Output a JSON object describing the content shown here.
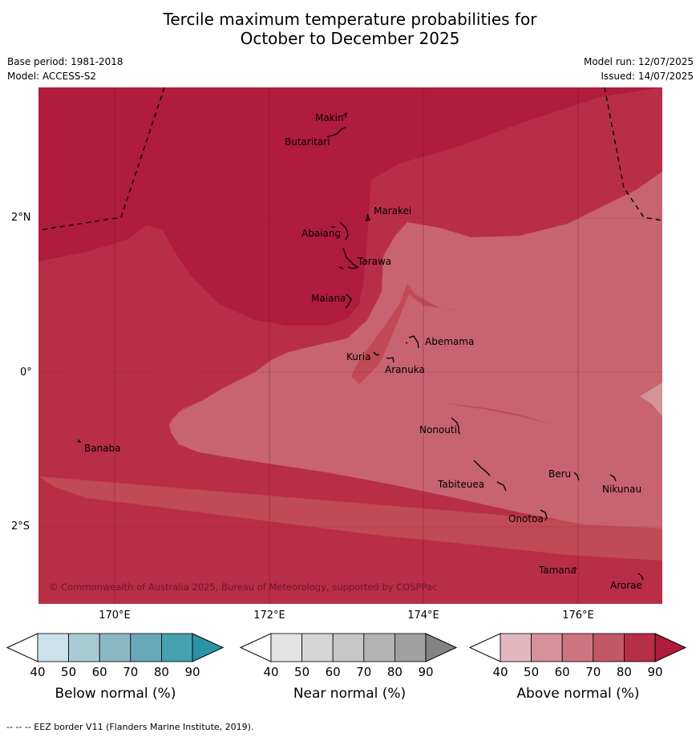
{
  "title_line1": "Tercile maximum temperature probabilities for",
  "title_line2": "October to December 2025",
  "base_period": "Base period: 1981-2018",
  "model": "Model: ACCESS-S2",
  "model_run": "Model run: 12/07/2025",
  "issued": "Issued: 14/07/2025",
  "copyright": "© Commonwealth of Australia 2025, Bureau of Meteorology, supported by COSPPac",
  "footer": "--  --  -- EEZ border V11 (Flanders Marine Institute, 2019).",
  "axes": {
    "lat_labels": [
      "2°N",
      "0°",
      "2°S"
    ],
    "lon_labels": [
      "170°E",
      "172°E",
      "174°E",
      "176°E"
    ]
  },
  "places": [
    {
      "name": "Makin"
    },
    {
      "name": "Butaritari"
    },
    {
      "name": "Marakei"
    },
    {
      "name": "Abaiang"
    },
    {
      "name": "Tarawa"
    },
    {
      "name": "Maiana"
    },
    {
      "name": "Abemama"
    },
    {
      "name": "Kuria"
    },
    {
      "name": "Aranuka"
    },
    {
      "name": "Banaba"
    },
    {
      "name": "Nonouti"
    },
    {
      "name": "Beru"
    },
    {
      "name": "Nikunau"
    },
    {
      "name": "Tabiteuea"
    },
    {
      "name": "Onotoa"
    },
    {
      "name": "Tamana"
    },
    {
      "name": "Arorae"
    }
  ],
  "colorbars": {
    "below": {
      "label": "Below normal (%)",
      "ticks": [
        "40",
        "50",
        "60",
        "70",
        "80",
        "90"
      ],
      "colors": [
        "#cbe2e9",
        "#a7cad3",
        "#8bb8c5",
        "#69a8b8",
        "#45a0b0",
        "#2a94a6"
      ]
    },
    "near": {
      "label": "Near normal (%)",
      "ticks": [
        "40",
        "50",
        "60",
        "70",
        "80",
        "90"
      ],
      "colors": [
        "#e3e3e3",
        "#d5d5d5",
        "#c7c7c7",
        "#b3b3b3",
        "#a0a0a0",
        "#838383"
      ]
    },
    "above": {
      "label": "Above normal (%)",
      "ticks": [
        "40",
        "50",
        "60",
        "70",
        "80",
        "90"
      ],
      "colors": [
        "#e2b8c0",
        "#d6919b",
        "#cc7581",
        "#c25865",
        "#b53047",
        "#b01c3b"
      ]
    }
  },
  "map_colors": {
    "above_90": "#b01c3b",
    "above_80": "#b92e47",
    "above_70": "#c04a55",
    "above_60": "#c7646f",
    "above_50": "#d3939b"
  }
}
